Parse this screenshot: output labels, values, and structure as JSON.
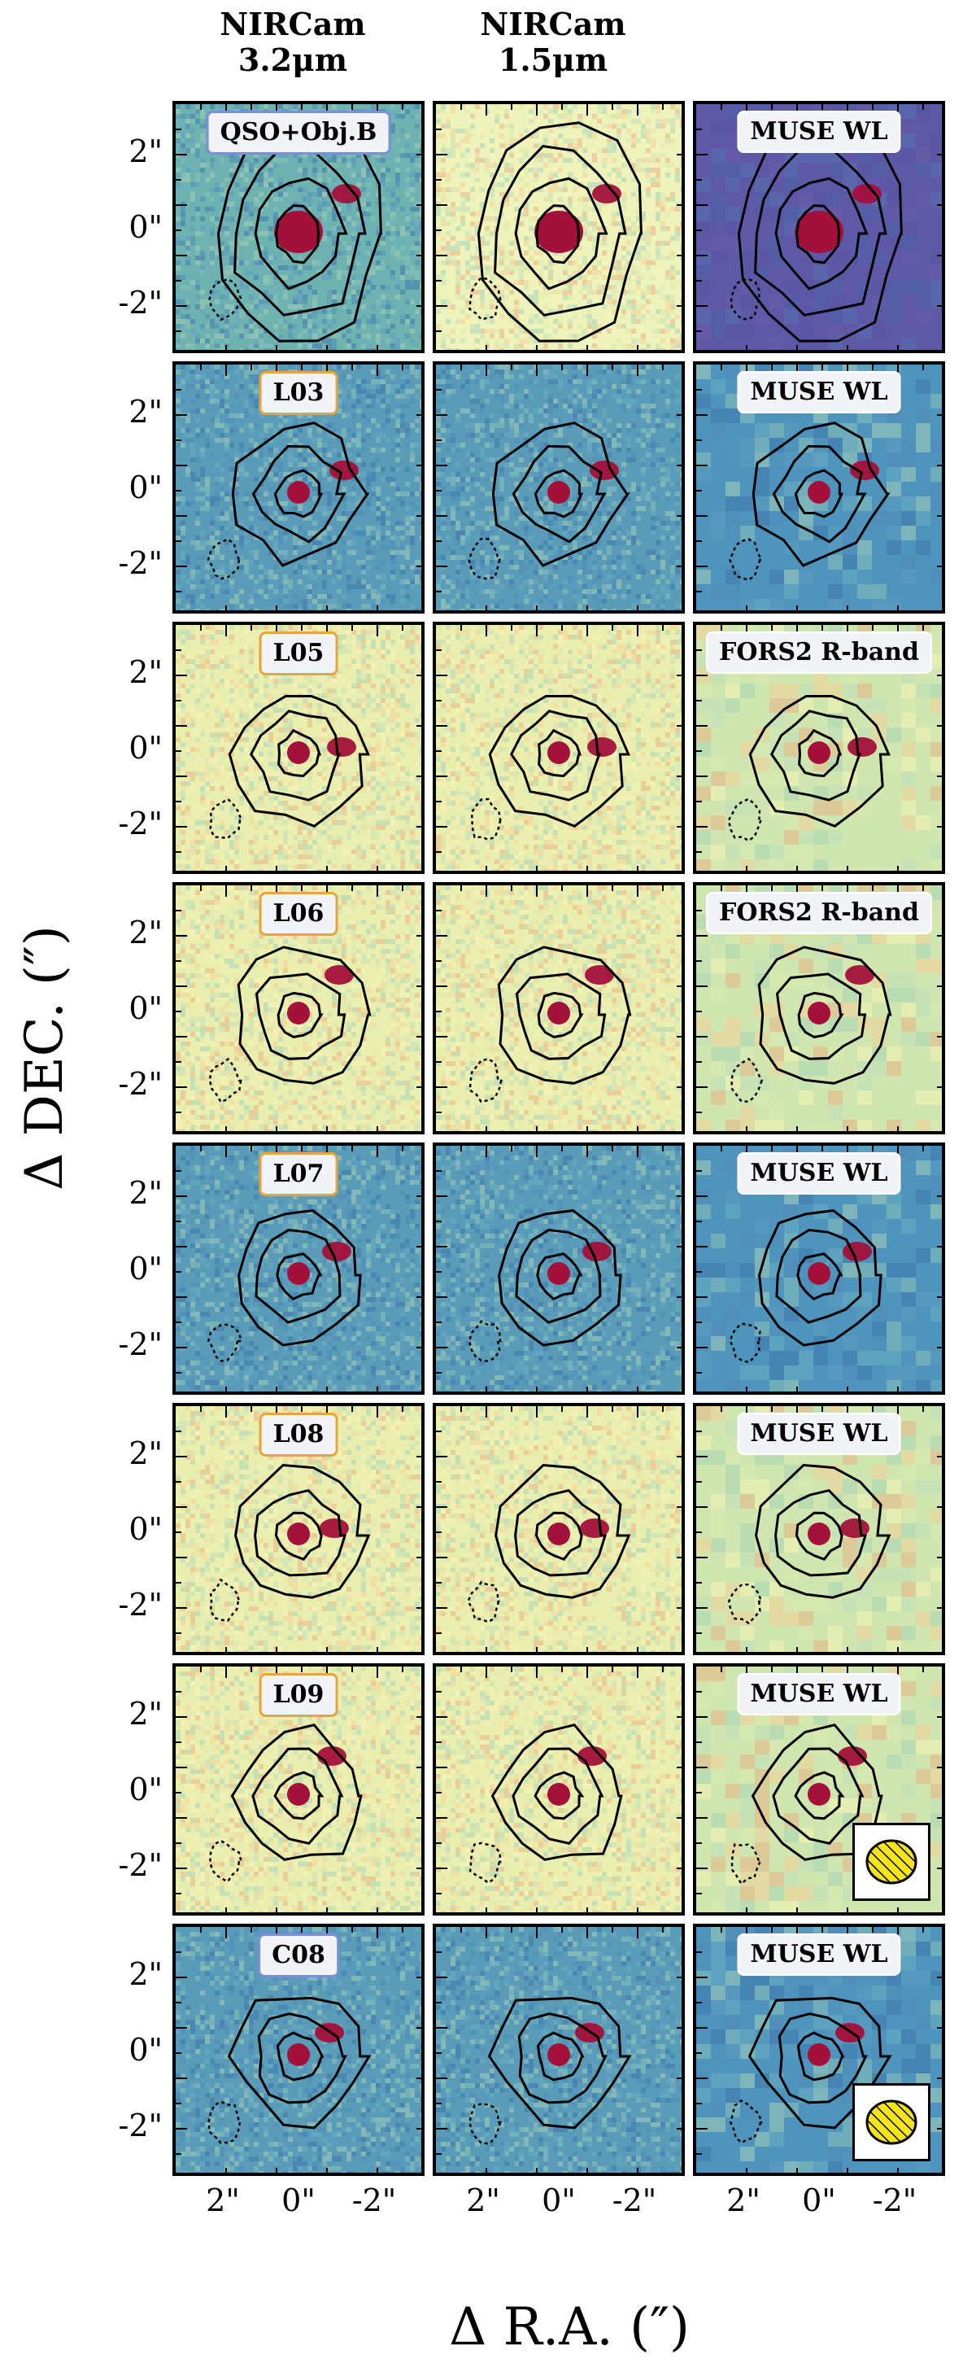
{
  "columns": [
    {
      "line1": "NIRCam",
      "line2": "3.2μm"
    },
    {
      "line1": "NIRCam",
      "line2": "1.5μm"
    },
    {
      "line1": "",
      "line2": ""
    }
  ],
  "axes": {
    "ylabel": "Δ DEC. (″)",
    "xlabel": "Δ R.A. (″)",
    "yticks": [
      "2\"",
      "0\"",
      "-2\""
    ],
    "xticks": [
      "2\"",
      "0\"",
      "-2\""
    ]
  },
  "rows": [
    {
      "label": "QSO+Obj.B",
      "label_style": "blue",
      "ref": "MUSE WL",
      "theme": "qso",
      "beam": false
    },
    {
      "label": "L03",
      "label_style": "orange",
      "ref": "MUSE WL",
      "theme": "blue",
      "beam": false
    },
    {
      "label": "L05",
      "label_style": "orange",
      "ref": "FORS2 R-band",
      "theme": "yellow",
      "beam": false
    },
    {
      "label": "L06",
      "label_style": "orange",
      "ref": "FORS2 R-band",
      "theme": "yellow",
      "beam": false
    },
    {
      "label": "L07",
      "label_style": "orange",
      "ref": "MUSE WL",
      "theme": "blue",
      "beam": false
    },
    {
      "label": "L08",
      "label_style": "orange",
      "ref": "MUSE WL",
      "theme": "yellow",
      "beam": false
    },
    {
      "label": "L09",
      "label_style": "orange",
      "ref": "MUSE WL",
      "theme": "yellow",
      "beam": true
    },
    {
      "label": "C08",
      "label_style": "blue",
      "ref": "MUSE WL",
      "theme": "blue",
      "beam": true
    }
  ],
  "colors": {
    "blue_bg": "#5a9cb8",
    "yellow_bg": "#eaefb0",
    "qso_purple": "#5e58a6",
    "source_red": "#a3103a",
    "contour": "#000000",
    "beam_fill": "#f4e41c",
    "label_orange_border": "#e8a33a",
    "label_blue_border": "#7a8fd8"
  }
}
